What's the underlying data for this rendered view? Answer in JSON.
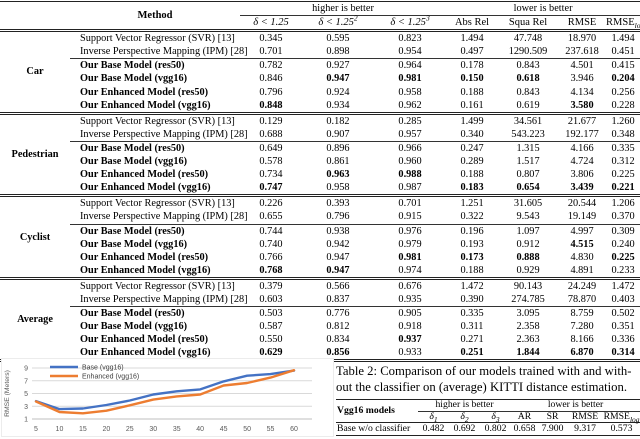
{
  "table1": {
    "header": {
      "method": "Method",
      "higher": "higher is better",
      "lower": "lower is better",
      "delta_cols": [
        {
          "base": "δ < 1.25",
          "sup": ""
        },
        {
          "base": "δ < 1.25",
          "sup": "2"
        },
        {
          "base": "δ < 1.25",
          "sup": "3"
        }
      ],
      "metric_cols": [
        {
          "base": "Abs Rel",
          "sub": ""
        },
        {
          "base": "Squa Rel",
          "sub": ""
        },
        {
          "base": "RMSE",
          "sub": ""
        },
        {
          "base": "RMSE",
          "sub": "log"
        }
      ]
    },
    "groups": [
      {
        "label": "Car",
        "rows": [
          {
            "method": "Support Vector Regressor (SVR) [13]",
            "model": false,
            "values": [
              "0.345",
              "0.595",
              "0.823",
              "1.494",
              "47.748",
              "18.970",
              "1.494"
            ],
            "bold": []
          },
          {
            "method": "Inverse Perspective Mapping (IPM) [28]",
            "model": false,
            "values": [
              "0.701",
              "0.898",
              "0.954",
              "0.497",
              "1290.509",
              "237.618",
              "0.451"
            ],
            "bold": []
          },
          {
            "method": "Our Base Model (res50)",
            "model": true,
            "values": [
              "0.782",
              "0.927",
              "0.964",
              "0.178",
              "0.843",
              "4.501",
              "0.415"
            ],
            "bold": []
          },
          {
            "method": "Our Base Model (vgg16)",
            "model": true,
            "values": [
              "0.846",
              "0.947",
              "0.981",
              "0.150",
              "0.618",
              "3.946",
              "0.204"
            ],
            "bold": [
              1,
              2,
              3,
              4,
              6
            ]
          },
          {
            "method": "Our Enhanced Model (res50)",
            "model": true,
            "values": [
              "0.796",
              "0.924",
              "0.958",
              "0.188",
              "0.843",
              "4.134",
              "0.256"
            ],
            "bold": []
          },
          {
            "method": "Our Enhanced Model (vgg16)",
            "model": true,
            "values": [
              "0.848",
              "0.934",
              "0.962",
              "0.161",
              "0.619",
              "3.580",
              "0.228"
            ],
            "bold": [
              0,
              5
            ]
          }
        ]
      },
      {
        "label": "Pedestrian",
        "rows": [
          {
            "method": "Support Vector Regressor (SVR) [13]",
            "model": false,
            "values": [
              "0.129",
              "0.182",
              "0.285",
              "1.499",
              "34.561",
              "21.677",
              "1.260"
            ],
            "bold": []
          },
          {
            "method": "Inverse Perspective Mapping (IPM) [28]",
            "model": false,
            "values": [
              "0.688",
              "0.907",
              "0.957",
              "0.340",
              "543.223",
              "192.177",
              "0.348"
            ],
            "bold": []
          },
          {
            "method": "Our Base Model (res50)",
            "model": true,
            "values": [
              "0.649",
              "0.896",
              "0.966",
              "0.247",
              "1.315",
              "4.166",
              "0.335"
            ],
            "bold": []
          },
          {
            "method": "Our Base Model (vgg16)",
            "model": true,
            "values": [
              "0.578",
              "0.861",
              "0.960",
              "0.289",
              "1.517",
              "4.724",
              "0.312"
            ],
            "bold": []
          },
          {
            "method": "Our Enhanced Model (res50)",
            "model": true,
            "values": [
              "0.734",
              "0.963",
              "0.988",
              "0.188",
              "0.807",
              "3.806",
              "0.225"
            ],
            "bold": [
              1,
              2
            ]
          },
          {
            "method": "Our Enhanced Model (vgg16)",
            "model": true,
            "values": [
              "0.747",
              "0.958",
              "0.987",
              "0.183",
              "0.654",
              "3.439",
              "0.221"
            ],
            "bold": [
              0,
              3,
              4,
              5,
              6
            ]
          }
        ]
      },
      {
        "label": "Cyclist",
        "rows": [
          {
            "method": "Support Vector Regressor (SVR) [13]",
            "model": false,
            "values": [
              "0.226",
              "0.393",
              "0.701",
              "1.251",
              "31.605",
              "20.544",
              "1.206"
            ],
            "bold": []
          },
          {
            "method": "Inverse Perspective Mapping (IPM) [28]",
            "model": false,
            "values": [
              "0.655",
              "0.796",
              "0.915",
              "0.322",
              "9.543",
              "19.149",
              "0.370"
            ],
            "bold": []
          },
          {
            "method": "Our Base Model (res50)",
            "model": true,
            "values": [
              "0.744",
              "0.938",
              "0.976",
              "0.196",
              "1.097",
              "4.997",
              "0.309"
            ],
            "bold": []
          },
          {
            "method": "Our Base Model (vgg16)",
            "model": true,
            "values": [
              "0.740",
              "0.942",
              "0.979",
              "0.193",
              "0.912",
              "4.515",
              "0.240"
            ],
            "bold": [
              5
            ]
          },
          {
            "method": "Our Enhanced Model (res50)",
            "model": true,
            "values": [
              "0.766",
              "0.947",
              "0.981",
              "0.173",
              "0.888",
              "4.830",
              "0.225"
            ],
            "bold": [
              2,
              3,
              4,
              6
            ]
          },
          {
            "method": "Our Enhanced Model (vgg16)",
            "model": true,
            "values": [
              "0.768",
              "0.947",
              "0.974",
              "0.188",
              "0.929",
              "4.891",
              "0.233"
            ],
            "bold": [
              0,
              1
            ]
          }
        ]
      },
      {
        "label": "Average",
        "rows": [
          {
            "method": "Support Vector Regressor (SVR) [13]",
            "model": false,
            "values": [
              "0.379",
              "0.566",
              "0.676",
              "1.472",
              "90.143",
              "24.249",
              "1.472"
            ],
            "bold": []
          },
          {
            "method": "Inverse Perspective Mapping (IPM) [28]",
            "model": false,
            "values": [
              "0.603",
              "0.837",
              "0.935",
              "0.390",
              "274.785",
              "78.870",
              "0.403"
            ],
            "bold": []
          },
          {
            "method": "Our Base Model (res50)",
            "model": true,
            "values": [
              "0.503",
              "0.776",
              "0.905",
              "0.335",
              "3.095",
              "8.759",
              "0.502"
            ],
            "bold": []
          },
          {
            "method": "Our Base Model (vgg16)",
            "model": true,
            "values": [
              "0.587",
              "0.812",
              "0.918",
              "0.311",
              "2.358",
              "7.280",
              "0.351"
            ],
            "bold": []
          },
          {
            "method": "Our Enhanced Model (res50)",
            "model": true,
            "values": [
              "0.550",
              "0.834",
              "0.937",
              "0.271",
              "2.363",
              "8.166",
              "0.336"
            ],
            "bold": [
              2
            ]
          },
          {
            "method": "Our Enhanced Model (vgg16)",
            "model": true,
            "values": [
              "0.629",
              "0.856",
              "0.933",
              "0.251",
              "1.844",
              "6.870",
              "0.314"
            ],
            "bold": [
              0,
              1,
              3,
              4,
              5,
              6
            ]
          }
        ]
      }
    ]
  },
  "chart_data": {
    "type": "line",
    "x": [
      5,
      10,
      15,
      20,
      25,
      30,
      35,
      40,
      45,
      50,
      55,
      60
    ],
    "series": [
      {
        "name": "Base (vgg16)",
        "color": "#4472C4",
        "values": [
          3.8,
          2.55,
          2.65,
          3.2,
          3.9,
          4.85,
          5.35,
          5.65,
          6.9,
          7.8,
          8.05,
          8.6
        ]
      },
      {
        "name": "Enhanced (vgg16)",
        "color": "#ED7D31",
        "values": [
          3.75,
          2.1,
          1.9,
          2.3,
          3.15,
          4.05,
          4.55,
          4.85,
          6.25,
          6.65,
          7.5,
          8.65
        ]
      }
    ],
    "title": "",
    "xlabel": "",
    "ylabel": "RMSE (Meters)",
    "yticks": [
      1,
      3,
      5,
      7,
      9
    ],
    "ylim": [
      1,
      9
    ],
    "grid": true,
    "legend_position": "top-left",
    "grid_color": "#d9d9d9",
    "axis_text_color": "#595959"
  },
  "table2": {
    "caption_lines": [
      "Table 2: Comparison of our models trained with and with-",
      "out the classifier on (average) KITTI distance estimation."
    ],
    "header": {
      "left": "Vgg16 models",
      "higher": "higher is better",
      "lower": "lower is better",
      "delta_cols": [
        {
          "base": "δ",
          "sub": "1"
        },
        {
          "base": "δ",
          "sub": "2"
        },
        {
          "base": "δ",
          "sub": "3"
        }
      ],
      "metric_cols": [
        {
          "base": "AR",
          "sub": ""
        },
        {
          "base": "SR",
          "sub": ""
        },
        {
          "base": "RMSE",
          "sub": ""
        },
        {
          "base": "RMSE",
          "sub": "log"
        }
      ]
    },
    "rows": [
      {
        "label": "Base w/o classifier",
        "values": [
          "0.482",
          "0.692",
          "0.802",
          "0.658",
          "7.900",
          "9.317",
          "0.573"
        ]
      }
    ]
  }
}
